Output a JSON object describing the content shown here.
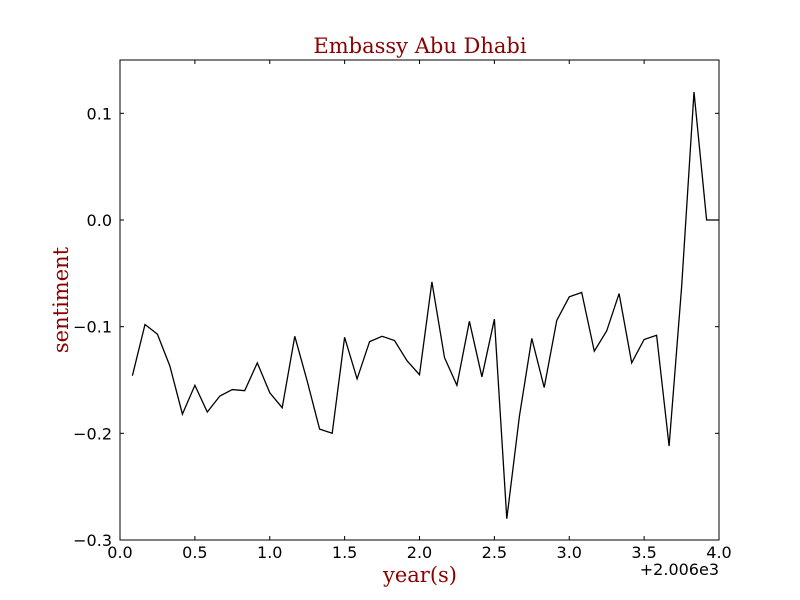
{
  "chart_data": {
    "type": "line",
    "title": "Embassy Abu Dhabi",
    "xlabel": "year(s)",
    "ylabel": "sentiment",
    "x_offset_label": "+2.006e3",
    "xlim": [
      0.0,
      4.0
    ],
    "ylim": [
      -0.3,
      0.15
    ],
    "x_ticks": [
      0.0,
      0.5,
      1.0,
      1.5,
      2.0,
      2.5,
      3.0,
      3.5,
      4.0
    ],
    "x_tick_labels": [
      "0.0",
      "0.5",
      "1.0",
      "1.5",
      "2.0",
      "2.5",
      "3.0",
      "3.5",
      "4.0"
    ],
    "y_ticks": [
      -0.3,
      -0.2,
      -0.1,
      0.0,
      0.1
    ],
    "y_tick_labels": [
      "−0.3",
      "−0.2",
      "−0.1",
      "0.0",
      "0.1"
    ],
    "grid": false,
    "label_color": "#8b0000",
    "line_color": "#000000",
    "series": [
      {
        "x": [
          0.083,
          0.167,
          0.25,
          0.333,
          0.417,
          0.5,
          0.583,
          0.667,
          0.75,
          0.833,
          0.917,
          1.0,
          1.083,
          1.167,
          1.25,
          1.333,
          1.417,
          1.5,
          1.583,
          1.667,
          1.75,
          1.833,
          1.917,
          2.0,
          2.083,
          2.167,
          2.25,
          2.333,
          2.417,
          2.5,
          2.583,
          2.667,
          2.75,
          2.833,
          2.917,
          3.0,
          3.083,
          3.167,
          3.25,
          3.333,
          3.417,
          3.5,
          3.583,
          3.667,
          3.75,
          3.833,
          3.917,
          4.0
        ],
        "y": [
          -0.146,
          -0.098,
          -0.107,
          -0.137,
          -0.182,
          -0.155,
          -0.18,
          -0.165,
          -0.159,
          -0.16,
          -0.134,
          -0.162,
          -0.176,
          -0.109,
          -0.151,
          -0.196,
          -0.2,
          -0.11,
          -0.149,
          -0.114,
          -0.109,
          -0.113,
          -0.132,
          -0.145,
          -0.058,
          -0.129,
          -0.155,
          -0.095,
          -0.147,
          -0.093,
          -0.28,
          -0.184,
          -0.111,
          -0.157,
          -0.094,
          -0.072,
          -0.068,
          -0.123,
          -0.104,
          -0.069,
          -0.134,
          -0.112,
          -0.108,
          -0.212,
          -0.063,
          0.12,
          0.0,
          0.0
        ]
      }
    ]
  }
}
